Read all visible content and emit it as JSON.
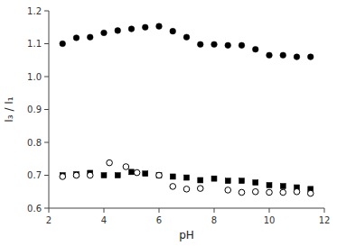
{
  "chart_data": {
    "type": "scatter",
    "xlabel": "pH",
    "ylabel": "I₃ / I₁",
    "xlim": [
      2,
      12
    ],
    "ylim": [
      0.6,
      1.2
    ],
    "xticks": [
      2,
      4,
      6,
      8,
      10,
      12
    ],
    "yticks": [
      0.6,
      0.7,
      0.8,
      0.9,
      {
        "value": 1.0,
        "label": "1.0"
      },
      1.1,
      1.2
    ],
    "series": [
      {
        "marker": "circle",
        "color": "#000000",
        "x": [
          2.5,
          3.0,
          3.5,
          4.0,
          4.5,
          5.0,
          5.5,
          6.0,
          6.5,
          7.0,
          7.5,
          8.0,
          8.5,
          9.0,
          9.5,
          10.0,
          10.5,
          11.0,
          11.5
        ],
        "values": [
          1.1,
          1.118,
          1.12,
          1.133,
          1.14,
          1.145,
          1.15,
          1.153,
          1.138,
          1.12,
          1.098,
          1.098,
          1.095,
          1.095,
          1.083,
          1.065,
          1.065,
          1.06,
          1.06
        ]
      },
      {
        "marker": "square",
        "color": "#000000",
        "x": [
          2.5,
          3.0,
          3.5,
          4.0,
          4.5,
          5.0,
          5.5,
          6.0,
          6.5,
          7.0,
          7.5,
          8.0,
          8.5,
          9.0,
          9.5,
          10.0,
          10.5,
          11.0,
          11.5
        ],
        "values": [
          0.7,
          0.703,
          0.707,
          0.7,
          0.7,
          0.71,
          0.705,
          0.7,
          0.696,
          0.693,
          0.685,
          0.69,
          0.683,
          0.683,
          0.678,
          0.67,
          0.667,
          0.663,
          0.658
        ]
      },
      {
        "marker": "open-circle",
        "color": "#000000",
        "x": [
          2.5,
          3.0,
          3.5,
          4.2,
          4.8,
          5.2,
          6.0,
          6.5,
          7.0,
          7.5,
          8.5,
          9.0,
          9.5,
          10.0,
          10.5,
          11.0,
          11.5
        ],
        "values": [
          0.696,
          0.7,
          0.7,
          0.738,
          0.726,
          0.708,
          0.7,
          0.666,
          0.658,
          0.66,
          0.655,
          0.648,
          0.65,
          0.648,
          0.648,
          0.65,
          0.645
        ]
      }
    ]
  }
}
